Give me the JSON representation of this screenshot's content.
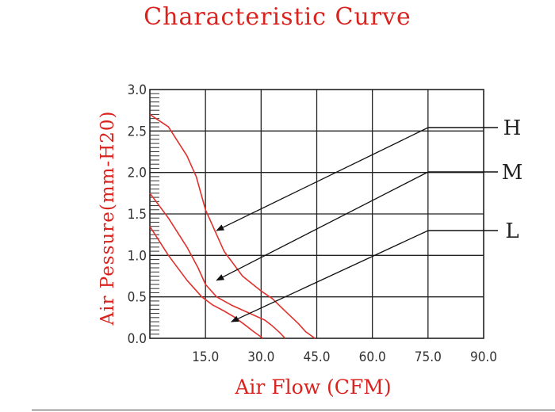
{
  "chart_data": {
    "type": "line",
    "title": "Characteristic Curve",
    "xlabel": "Air Flow (CFM)",
    "ylabel": "Air Pessure(mm-H20)",
    "xlim": [
      0,
      90
    ],
    "ylim": [
      0,
      3.0
    ],
    "x_ticks": [
      "15.0",
      "30.0",
      "45.0",
      "60.0",
      "75.0",
      "90.0"
    ],
    "y_ticks": [
      "0.0",
      "0.5",
      "1.0",
      "1.5",
      "2.0",
      "2.5",
      "3.0"
    ],
    "grid": true,
    "series": [
      {
        "name": "H",
        "x": [
          0,
          5,
          10,
          12.5,
          15,
          17.5,
          20,
          25,
          30,
          33,
          36,
          40,
          42,
          44.5
        ],
        "y": [
          2.7,
          2.55,
          2.2,
          1.95,
          1.55,
          1.3,
          1.05,
          0.75,
          0.57,
          0.48,
          0.35,
          0.18,
          0.08,
          0
        ]
      },
      {
        "name": "M",
        "x": [
          0,
          5,
          10,
          13,
          15,
          18,
          22,
          27,
          31,
          33,
          35,
          36.5
        ],
        "y": [
          1.75,
          1.45,
          1.1,
          0.85,
          0.65,
          0.5,
          0.4,
          0.3,
          0.22,
          0.15,
          0.07,
          0
        ]
      },
      {
        "name": "L",
        "x": [
          0,
          5,
          10,
          14,
          17,
          20,
          23,
          26,
          28,
          30.5
        ],
        "y": [
          1.35,
          1.0,
          0.7,
          0.5,
          0.4,
          0.33,
          0.25,
          0.15,
          0.08,
          0
        ]
      }
    ],
    "annotations": [
      {
        "label": "H",
        "points_to": [
          18,
          1.3
        ]
      },
      {
        "label": "M",
        "points_to": [
          18,
          0.7
        ]
      },
      {
        "label": "L",
        "points_to": [
          22,
          0.2
        ]
      }
    ]
  }
}
